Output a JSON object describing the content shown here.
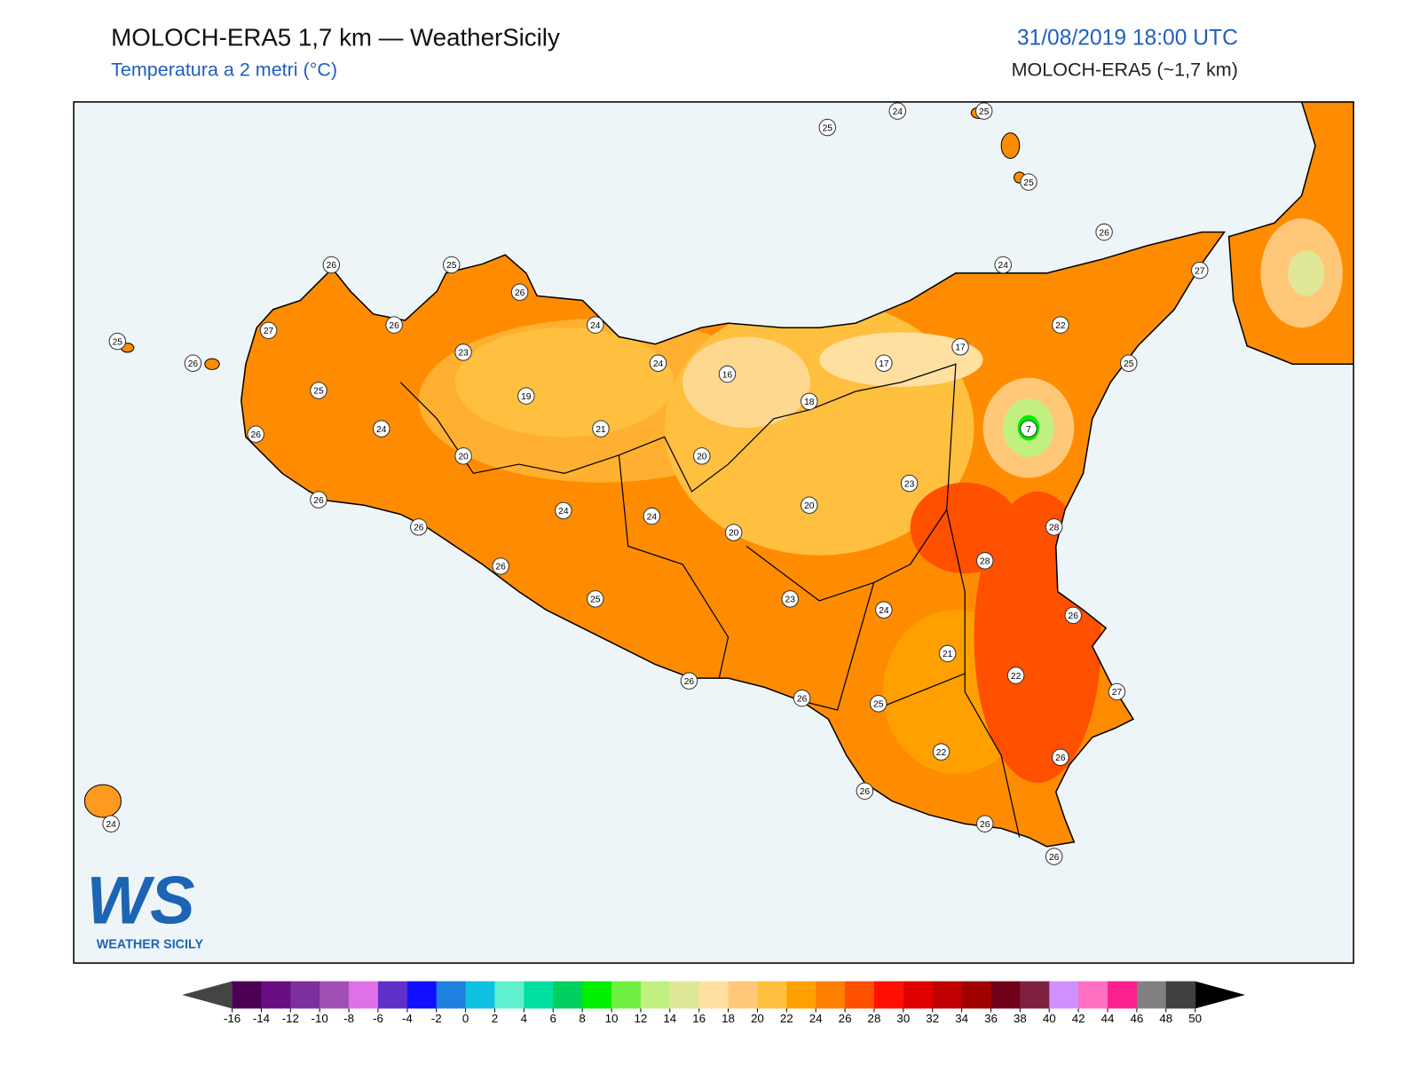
{
  "header": {
    "title": "MOLOCH-ERA5 1,7 km — WeatherSicily",
    "subtitle": "Temperatura a 2 metri (°C)",
    "date": "31/08/2019 18:00 UTC",
    "model": "MOLOCH-ERA5 (~1,7 km)"
  },
  "map": {
    "stations": [
      25,
      24,
      25,
      25,
      26,
      24,
      27,
      26,
      25,
      26,
      26,
      24,
      22,
      27,
      25,
      17,
      23,
      26,
      24,
      17,
      25,
      16,
      25,
      19,
      18,
      21,
      24,
      7,
      26,
      20,
      20,
      23,
      26,
      24,
      20,
      24,
      26,
      20,
      28,
      28,
      26,
      25,
      23,
      24,
      26,
      21,
      22,
      26,
      27,
      26,
      25,
      22,
      26,
      26,
      24,
      26,
      26
    ]
  },
  "colorbar": {
    "ticks": [
      -16,
      -14,
      -12,
      -10,
      -8,
      -6,
      -4,
      -2,
      0,
      2,
      4,
      6,
      8,
      10,
      12,
      14,
      16,
      18,
      20,
      22,
      24,
      26,
      28,
      30,
      32,
      34,
      36,
      38,
      40,
      42,
      44,
      46,
      48,
      50
    ],
    "colors": [
      "#4b0055",
      "#6a0d83",
      "#7e2f9e",
      "#a050b4",
      "#e070e8",
      "#6030c8",
      "#1010ff",
      "#2080e0",
      "#10c0e0",
      "#60f0d0",
      "#00e0a0",
      "#00d060",
      "#00ee00",
      "#70f040",
      "#c0f080",
      "#e0e898",
      "#ffe0a0",
      "#ffc878",
      "#ffc040",
      "#ffa000",
      "#ff8000",
      "#ff5000",
      "#ff1000",
      "#e00000",
      "#c00000",
      "#a00000",
      "#700018",
      "#802040",
      "#d090ff",
      "#ff70c0",
      "#ff2090",
      "#808080",
      "#404040"
    ],
    "under_color": "#444444",
    "over_color": "#000000"
  },
  "logo": {
    "text": "WS",
    "caption": "WEATHER SICILY"
  }
}
